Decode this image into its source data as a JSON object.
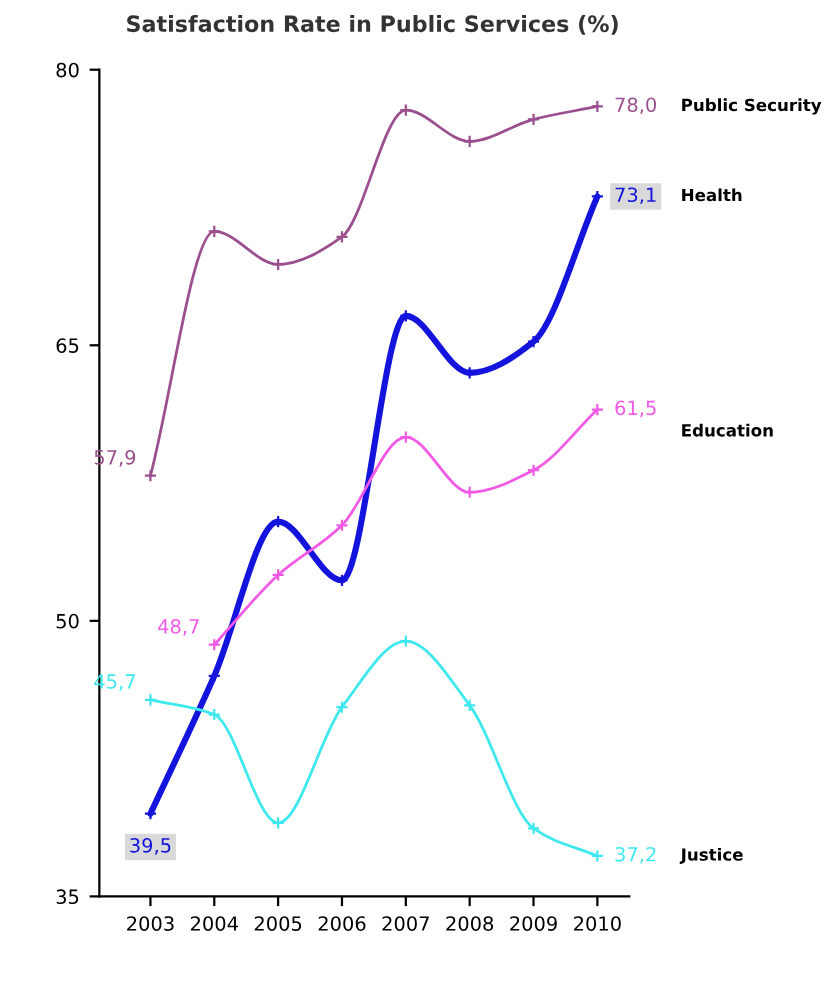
{
  "chart_data": {
    "type": "line",
    "title": "Satisfaction Rate in Public Services (%)",
    "categories": [
      "2003",
      "2004",
      "2005",
      "2006",
      "2007",
      "2008",
      "2009",
      "2010"
    ],
    "ylim": [
      35,
      80
    ],
    "yticks": [
      35,
      50,
      65,
      80
    ],
    "grid": false,
    "legend": false,
    "marker": "cross",
    "line_style": "solid",
    "series": [
      {
        "name": "Public Security",
        "color": "#9b4f8f",
        "values": [
          57.9,
          71.2,
          69.4,
          70.9,
          77.8,
          76.1,
          77.3,
          78.0
        ],
        "value_labels": [
          "57,9",
          null,
          null,
          null,
          null,
          null,
          null,
          "78,0"
        ]
      },
      {
        "name": "Health",
        "color": "#1414dc",
        "values": [
          39.5,
          47.0,
          55.4,
          52.2,
          66.6,
          63.5,
          65.2,
          73.1
        ],
        "value_labels": [
          "39,5",
          null,
          null,
          null,
          null,
          null,
          null,
          "73,1"
        ]
      },
      {
        "name": "Education",
        "color": "#f25ae6",
        "values": [
          null,
          48.7,
          52.5,
          55.2,
          60.0,
          57.0,
          58.2,
          61.5
        ],
        "value_labels": [
          null,
          "48,7",
          null,
          null,
          null,
          null,
          null,
          "61,5"
        ]
      },
      {
        "name": "Justice",
        "color": "#3ee8ee",
        "values": [
          45.7,
          44.9,
          39.0,
          45.3,
          48.9,
          45.4,
          38.7,
          37.2
        ],
        "value_labels": [
          "45,7",
          null,
          null,
          null,
          null,
          null,
          null,
          "37,2"
        ]
      }
    ]
  }
}
